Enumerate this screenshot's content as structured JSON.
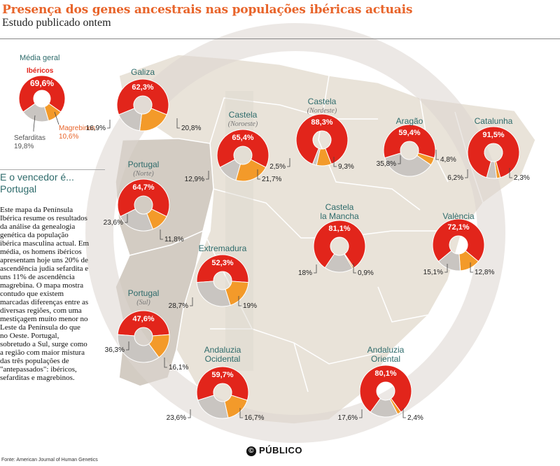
{
  "title": "Presença dos genes ancestrais nas populações ibéricas actuais",
  "subtitle": "Estudo publicado ontem",
  "sidebar": {
    "media_geral": "Média geral",
    "ibericos": "Ibéricos",
    "media_value": "69,6%",
    "sefarditas": "Sefarditas",
    "sefarditas_value": "19,8%",
    "magrebinos": "Magrebinos",
    "magrebinos_value": "10,6%",
    "winner_line1": "E o vencedor é...",
    "winner_line2": "Portugal",
    "body": "Este mapa da Península Ibérica resume os resultados da análise da genealogia genética da população ibérica masculina actual. Em média, os homens ibéricos apresentam hoje uns 20% de ascendência judia sefardita e uns 11% de ascendência magrebina. O mapa mostra contudo que existem marcadas diferenças entre as diversas regiões, com uma mestiçagem muito menor no Leste da Península do que no Oeste. Portugal, sobretudo a Sul, surge como a região com maior mistura das três populações de \"antepassados\": ibéricos, sefarditas e magrebinos."
  },
  "source": "Fonte: American Journal of Human Genetics",
  "brand": "PÚBLICO",
  "brand_symbol": "©",
  "colors": {
    "iberian": "#e2251b",
    "sephardic": "#c9c5c1",
    "maghreb": "#f39a2a",
    "map_land": "#e9e3d9",
    "map_portugal": "#d6d0c8",
    "title": "#e8642a"
  },
  "chart_data": {
    "type": "pie",
    "series_names": [
      "Ibéricos",
      "Sefarditas",
      "Magrebinos"
    ],
    "average": {
      "label": "Média geral",
      "values": [
        69.6,
        19.8,
        10.6
      ],
      "labels": [
        "69,6%",
        "19,8%",
        "10,6%"
      ]
    },
    "regions": [
      {
        "name": "Galiza",
        "sub": "",
        "values": [
          62.3,
          16.9,
          20.8
        ],
        "labels": [
          "62,3%",
          "16,9%",
          "20,8%"
        ]
      },
      {
        "name": "Castela",
        "sub": "(Noroeste)",
        "values": [
          65.4,
          12.9,
          21.7
        ],
        "labels": [
          "65,4%",
          "12,9%",
          "21,7%"
        ]
      },
      {
        "name": "Castela",
        "sub": "(Nordeste)",
        "values": [
          88.3,
          2.5,
          9.3
        ],
        "labels": [
          "88,3%",
          "2,5%",
          "9,3%"
        ]
      },
      {
        "name": "Aragão",
        "sub": "",
        "values": [
          59.4,
          35.8,
          4.8
        ],
        "labels": [
          "59,4%",
          "35,8%",
          "4,8%"
        ]
      },
      {
        "name": "Catalunha",
        "sub": "",
        "values": [
          91.5,
          6.2,
          2.3
        ],
        "labels": [
          "91,5%",
          "6,2%",
          "2,3%"
        ]
      },
      {
        "name": "Portugal",
        "sub": "(Norte)",
        "values": [
          64.7,
          23.6,
          11.8
        ],
        "labels": [
          "64,7%",
          "23,6%",
          "11,8%"
        ]
      },
      {
        "name": "Castela",
        "sub": "la Mancha",
        "values": [
          81.1,
          18,
          0.9
        ],
        "labels": [
          "81,1%",
          "18%",
          "0,9%"
        ]
      },
      {
        "name": "València",
        "sub": "",
        "values": [
          72.1,
          15.1,
          12.8
        ],
        "labels": [
          "72,1%",
          "15,1%",
          "12,8%"
        ]
      },
      {
        "name": "Extremadura",
        "sub": "",
        "values": [
          52.3,
          28.7,
          19
        ],
        "labels": [
          "52,3%",
          "28,7%",
          "19%"
        ]
      },
      {
        "name": "Portugal",
        "sub": "(Sul)",
        "values": [
          47.6,
          36.3,
          16.1
        ],
        "labels": [
          "47,6%",
          "36,3%",
          "16,1%"
        ]
      },
      {
        "name": "Andaluzia",
        "sub": "Ocidental",
        "values": [
          59.7,
          23.6,
          16.7
        ],
        "labels": [
          "59,7%",
          "23,6%",
          "16,7%"
        ]
      },
      {
        "name": "Andaluzia",
        "sub": "Oriental",
        "values": [
          80.1,
          17.6,
          2.4
        ],
        "labels": [
          "80,1%",
          "17,6%",
          "2,4%"
        ]
      }
    ]
  }
}
